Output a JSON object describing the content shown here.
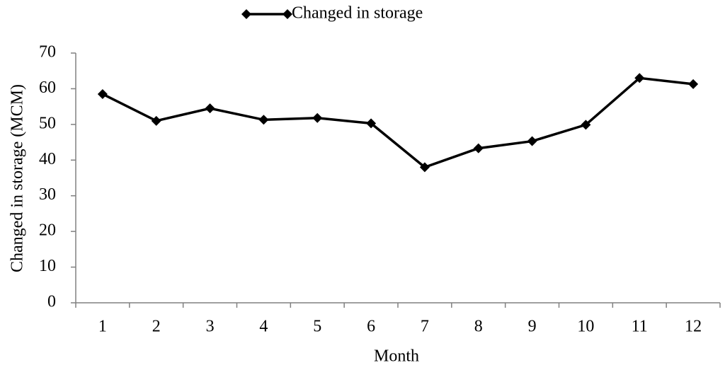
{
  "chart_data": {
    "type": "line",
    "x_label": "Month",
    "y_label": "Changed in storage (MCM)",
    "categories": [
      "1",
      "2",
      "3",
      "4",
      "5",
      "6",
      "7",
      "8",
      "9",
      "10",
      "11",
      "12"
    ],
    "series": [
      {
        "name": "Changed in storage",
        "color": "#000000",
        "values": [
          58.5,
          51,
          54.5,
          51.3,
          51.8,
          50.3,
          38,
          43.3,
          45.3,
          49.9,
          63,
          61.3
        ]
      }
    ],
    "ylim": [
      0,
      70
    ],
    "yticks": [
      0,
      10,
      20,
      30,
      40,
      50,
      60,
      70
    ],
    "grid": false,
    "legend": "top"
  }
}
